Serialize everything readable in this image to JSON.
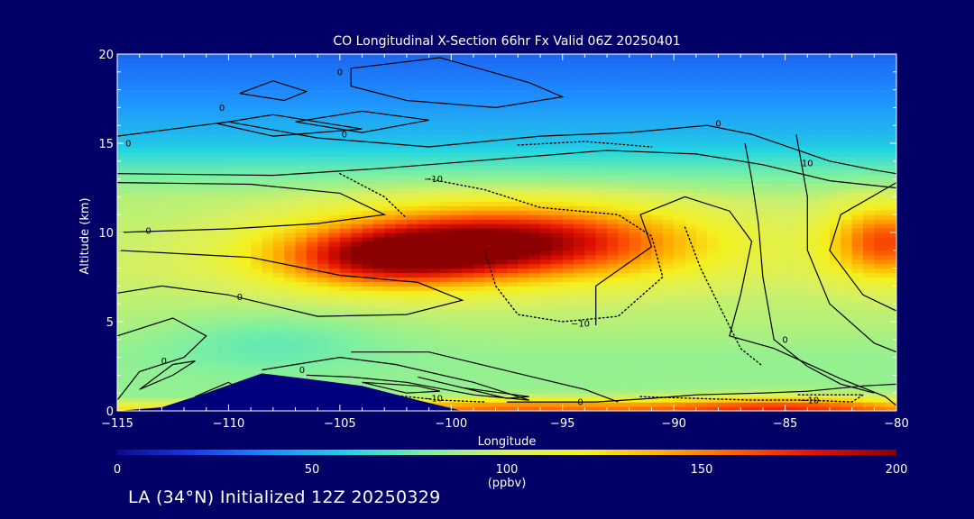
{
  "chart_data": {
    "type": "heatmap",
    "title": "CO Longitudinal X-Section 66hr  Fx Valid 06Z 20250401",
    "xlabel": "Longitude",
    "ylabel": "Altitude (km)",
    "xlim": [
      -115,
      -80
    ],
    "ylim": [
      0,
      20
    ],
    "x_ticks": [
      "−115",
      "−110",
      "−105",
      "−100",
      "−95",
      "−90",
      "−85",
      "−80"
    ],
    "y_ticks": [
      "0",
      "5",
      "10",
      "15",
      "20"
    ],
    "colorbar": {
      "min": 0,
      "max": 200,
      "ticks": [
        "0",
        "50",
        "100",
        "150",
        "200"
      ],
      "units": "(ppbv)",
      "colors": [
        "#0b0b8f",
        "#1a3ce6",
        "#1e90ff",
        "#23d6e0",
        "#7ef0a0",
        "#d8f060",
        "#f4f01e",
        "#ffb000",
        "#ff5a00",
        "#e01000",
        "#8b0000"
      ]
    },
    "band_levels": [
      {
        "alt": 0,
        "value": 130
      },
      {
        "alt": 0.8,
        "value": 85
      },
      {
        "alt": 3,
        "value": 85
      },
      {
        "alt": 5,
        "value": 92
      },
      {
        "alt": 8,
        "value": 98
      },
      {
        "alt": 10,
        "value": 95
      },
      {
        "alt": 12,
        "value": 92
      },
      {
        "alt": 13.5,
        "value": 75
      },
      {
        "alt": 15,
        "value": 55
      },
      {
        "alt": 17.5,
        "value": 40
      },
      {
        "alt": 20,
        "value": 30
      }
    ],
    "features": [
      {
        "name": "plume-upper",
        "lon": -97.5,
        "alt": 9.5,
        "peak": 200,
        "sx": 8.0,
        "sy": 2.0
      },
      {
        "name": "plume-upper-west",
        "lon": -103,
        "alt": 8.5,
        "peak": 165,
        "sx": 5.0,
        "sy": 1.6
      },
      {
        "name": "plume-east",
        "lon": -80.5,
        "alt": 9.5,
        "peak": 165,
        "sx": 2.5,
        "sy": 2.0
      },
      {
        "name": "surface-east",
        "lon": -85,
        "alt": 0.3,
        "peak": 165,
        "sx": 6.0,
        "sy": 0.6
      },
      {
        "name": "surface-mid",
        "lon": -97,
        "alt": 0.3,
        "peak": 150,
        "sx": 7.0,
        "sy": 0.5
      },
      {
        "name": "low-west",
        "lon": -108,
        "alt": 4.0,
        "peak": 75,
        "sx": 5.0,
        "sy": 1.6
      }
    ],
    "terrain": [
      {
        "lon": -115,
        "alt": 0.0
      },
      {
        "lon": -113,
        "alt": 0.2
      },
      {
        "lon": -111,
        "alt": 1.0
      },
      {
        "lon": -108.5,
        "alt": 2.1
      },
      {
        "lon": -106.5,
        "alt": 1.8
      },
      {
        "lon": -104,
        "alt": 1.4
      },
      {
        "lon": -101.5,
        "alt": 0.6
      },
      {
        "lon": -99.5,
        "alt": 0.0
      },
      {
        "lon": -80,
        "alt": 0.0
      }
    ],
    "contours": [
      {
        "style": "solid",
        "points": [
          [
            -115,
            13.3
          ],
          [
            -108,
            13.2
          ],
          [
            -103,
            13.6
          ],
          [
            -97,
            14.2
          ],
          [
            -93,
            14.6
          ],
          [
            -89,
            14.4
          ],
          [
            -86,
            13.8
          ],
          [
            -83,
            12.9
          ],
          [
            -80,
            12.5
          ]
        ]
      },
      {
        "style": "solid",
        "points": [
          [
            -115,
            15.4
          ],
          [
            -110,
            16.2
          ],
          [
            -106,
            15.3
          ],
          [
            -101,
            14.8
          ],
          [
            -96,
            15.4
          ],
          [
            -92,
            15.6
          ],
          [
            -88.5,
            16.0
          ],
          [
            -86.5,
            15.5
          ],
          [
            -83,
            14.0
          ],
          [
            -81,
            13.5
          ],
          [
            -80,
            13.3
          ]
        ]
      },
      {
        "style": "solid",
        "points": [
          [
            -110.5,
            16.1
          ],
          [
            -108,
            15.4
          ],
          [
            -104,
            15.8
          ],
          [
            -108,
            16.6
          ],
          [
            -110.5,
            16.1
          ]
        ]
      },
      {
        "style": "solid",
        "points": [
          [
            -107,
            16.2
          ],
          [
            -104,
            16.8
          ],
          [
            -101,
            16.3
          ],
          [
            -104,
            15.6
          ],
          [
            -107,
            16.2
          ]
        ]
      },
      {
        "style": "solid",
        "points": [
          [
            -109.5,
            17.8
          ],
          [
            -107.5,
            17.4
          ],
          [
            -106.5,
            17.9
          ],
          [
            -108,
            18.5
          ],
          [
            -109.5,
            17.8
          ]
        ]
      },
      {
        "style": "solid",
        "points": [
          [
            -104.5,
            19.2
          ],
          [
            -100.5,
            19.8
          ],
          [
            -96.5,
            18.4
          ],
          [
            -95,
            17.6
          ],
          [
            -98,
            17.0
          ],
          [
            -102,
            17.4
          ],
          [
            -104.5,
            18.2
          ],
          [
            -104.5,
            19.2
          ]
        ]
      },
      {
        "style": "solid",
        "points": [
          [
            -115,
            12.8
          ],
          [
            -109,
            12.7
          ],
          [
            -105,
            12.2
          ],
          [
            -103,
            11.0
          ],
          [
            -106,
            10.5
          ],
          [
            -110,
            10.2
          ],
          [
            -115,
            10.0
          ]
        ]
      },
      {
        "style": "solid",
        "points": [
          [
            -115,
            9.0
          ],
          [
            -109,
            8.6
          ],
          [
            -105,
            7.6
          ],
          [
            -101.5,
            7.2
          ],
          [
            -99.5,
            6.2
          ],
          [
            -102,
            5.4
          ],
          [
            -106,
            5.3
          ],
          [
            -110,
            6.5
          ],
          [
            -113,
            7.0
          ],
          [
            -115,
            6.6
          ]
        ]
      },
      {
        "style": "solid",
        "points": [
          [
            -115,
            4.2
          ],
          [
            -112.5,
            5.2
          ],
          [
            -111,
            4.2
          ],
          [
            -112,
            3.0
          ],
          [
            -114,
            2.2
          ],
          [
            -115,
            0.6
          ]
        ]
      },
      {
        "style": "solid",
        "points": [
          [
            -114,
            1.2
          ],
          [
            -112.5,
            2.6
          ],
          [
            -111.5,
            2.8
          ],
          [
            -112.5,
            2.0
          ],
          [
            -114,
            1.2
          ]
        ]
      },
      {
        "style": "solid",
        "points": [
          [
            -111.5,
            0.8
          ],
          [
            -110,
            1.6
          ],
          [
            -109.5,
            1.2
          ],
          [
            -111,
            0.6
          ],
          [
            -111.5,
            0.8
          ]
        ]
      },
      {
        "style": "solid",
        "points": [
          [
            -108.5,
            2.3
          ],
          [
            -105,
            3.0
          ],
          [
            -102.5,
            2.6
          ],
          [
            -99,
            1.6
          ],
          [
            -96.5,
            0.6
          ],
          [
            -99,
            0.9
          ],
          [
            -102,
            1.6
          ],
          [
            -104.5,
            1.9
          ],
          [
            -106.5,
            2.0
          ]
        ]
      },
      {
        "style": "solid",
        "points": [
          [
            -104.5,
            3.3
          ],
          [
            -101,
            3.3
          ],
          [
            -97,
            2.1
          ],
          [
            -94,
            1.2
          ],
          [
            -92.5,
            0.5
          ]
        ]
      },
      {
        "style": "solid",
        "points": [
          [
            -101.5,
            1.9
          ],
          [
            -99.5,
            1.3
          ],
          [
            -96.5,
            0.8
          ],
          [
            -97.5,
            0.7
          ],
          [
            -101.5,
            1.9
          ]
        ]
      },
      {
        "style": "solid",
        "points": [
          [
            -104,
            1.6
          ],
          [
            -101.5,
            1.4
          ],
          [
            -100.5,
            1.1
          ],
          [
            -102,
            1.0
          ],
          [
            -104,
            1.6
          ]
        ]
      },
      {
        "style": "solid",
        "points": [
          [
            -97.5,
            0.5
          ],
          [
            -93.5,
            0.5
          ],
          [
            -91,
            0.7
          ],
          [
            -89,
            0.9
          ],
          [
            -86,
            1.0
          ],
          [
            -84,
            1.1
          ],
          [
            -81.5,
            1.4
          ],
          [
            -80,
            1.5
          ]
        ]
      },
      {
        "style": "solid",
        "points": [
          [
            -93.5,
            4.8
          ],
          [
            -93.5,
            7.0
          ],
          [
            -91,
            9.2
          ],
          [
            -91.5,
            11.0
          ],
          [
            -89.5,
            12.0
          ],
          [
            -87.5,
            11.2
          ],
          [
            -86.5,
            9.5
          ],
          [
            -87,
            6.5
          ],
          [
            -87.5,
            4.2
          ],
          [
            -85.5,
            3.5
          ],
          [
            -82.5,
            1.8
          ],
          [
            -80.5,
            0.8
          ],
          [
            -80,
            0.3
          ]
        ]
      },
      {
        "style": "solid",
        "points": [
          [
            -86.8,
            15.0
          ],
          [
            -86.5,
            13.0
          ],
          [
            -86.2,
            10.5
          ],
          [
            -86.0,
            7.5
          ],
          [
            -85.5,
            4.0
          ],
          [
            -84.0,
            2.5
          ],
          [
            -82.5,
            1.5
          ],
          [
            -81.0,
            1.0
          ]
        ]
      },
      {
        "style": "solid",
        "points": [
          [
            -84.5,
            15.5
          ],
          [
            -84.0,
            12.0
          ],
          [
            -84.0,
            9.0
          ],
          [
            -83.0,
            6.0
          ],
          [
            -81.0,
            3.8
          ],
          [
            -80.0,
            3.3
          ]
        ]
      },
      {
        "style": "solid",
        "points": [
          [
            -80,
            12.8
          ],
          [
            -82.5,
            11.0
          ],
          [
            -83.0,
            9.0
          ],
          [
            -81.5,
            6.5
          ],
          [
            -80,
            5.6
          ]
        ]
      },
      {
        "style": "dotted",
        "points": [
          [
            -105,
            13.3
          ],
          [
            -103,
            12.0
          ],
          [
            -102,
            10.8
          ]
        ]
      },
      {
        "style": "dotted",
        "points": [
          [
            -101,
            13.0
          ],
          [
            -98.5,
            12.4
          ],
          [
            -96,
            11.4
          ],
          [
            -92.5,
            11.0
          ],
          [
            -91,
            9.8
          ],
          [
            -90.5,
            7.5
          ],
          [
            -92.5,
            5.3
          ],
          [
            -95,
            5.0
          ],
          [
            -97,
            5.4
          ],
          [
            -98,
            7.0
          ],
          [
            -98.5,
            9.0
          ]
        ]
      },
      {
        "style": "dotted",
        "points": [
          [
            -97,
            14.9
          ],
          [
            -94,
            15.1
          ],
          [
            -91,
            14.8
          ]
        ]
      },
      {
        "style": "dotted",
        "points": [
          [
            -89.5,
            10.3
          ],
          [
            -88.8,
            8.0
          ],
          [
            -88,
            6.0
          ],
          [
            -87,
            3.5
          ],
          [
            -86,
            2.5
          ]
        ]
      },
      {
        "style": "dotted",
        "points": [
          [
            -91.5,
            0.8
          ],
          [
            -86.5,
            0.6
          ],
          [
            -84,
            0.6
          ],
          [
            -82,
            0.5
          ],
          [
            -81.5,
            0.9
          ],
          [
            -84.5,
            0.9
          ]
        ]
      },
      {
        "style": "dotted",
        "points": [
          [
            -103.5,
            1.0
          ],
          [
            -100.5,
            0.6
          ],
          [
            -98.5,
            0.5
          ]
        ]
      }
    ],
    "contour_labels": [
      {
        "text": "0",
        "lon": -114.5,
        "alt": 15.0
      },
      {
        "text": "0",
        "lon": -110.3,
        "alt": 17.0
      },
      {
        "text": "0",
        "lon": -104.8,
        "alt": 15.5
      },
      {
        "text": "0",
        "lon": -105,
        "alt": 19.0
      },
      {
        "text": "0",
        "lon": -113.6,
        "alt": 10.1
      },
      {
        "text": "0",
        "lon": -109.5,
        "alt": 6.4
      },
      {
        "text": "0",
        "lon": -112.9,
        "alt": 2.8
      },
      {
        "text": "0",
        "lon": -106.7,
        "alt": 2.3
      },
      {
        "text": "0",
        "lon": -94.2,
        "alt": 0.5
      },
      {
        "text": "0",
        "lon": -88,
        "alt": 16.1
      },
      {
        "text": "0",
        "lon": -85,
        "alt": 4.0
      },
      {
        "text": "10",
        "lon": -84,
        "alt": 13.9
      },
      {
        "text": "−10",
        "lon": -100.8,
        "alt": 13.0
      },
      {
        "text": "−10",
        "lon": -94.2,
        "alt": 4.9
      },
      {
        "text": "−10",
        "lon": -100.8,
        "alt": 0.7
      },
      {
        "text": "−10",
        "lon": -83.9,
        "alt": 0.6
      }
    ]
  },
  "footer_text": "LA (34°N) Initialized 12Z 20250329"
}
